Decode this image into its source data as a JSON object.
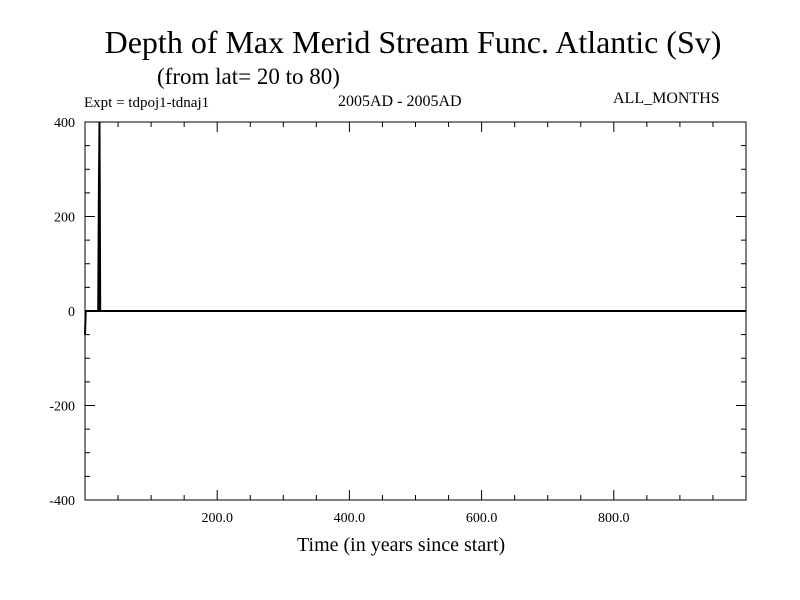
{
  "chart_data": {
    "type": "line",
    "title": "Depth of Max Merid Stream Func. Atlantic (Sv)",
    "subtitle": "(from lat= 20 to 80)",
    "expt": "Expt = tdpoj1-tdnaj1",
    "period": "2005AD - 2005AD",
    "months": "ALL_MONTHS",
    "xlabel": "Time (in years since start)",
    "ylabel": "",
    "xlim": [
      0,
      1000
    ],
    "ylim": [
      -400,
      400
    ],
    "xticks": [
      200,
      400,
      600,
      800
    ],
    "xtick_labels": [
      "200.0",
      "400.0",
      "600.0",
      "800.0"
    ],
    "yticks": [
      -400,
      -200,
      0,
      200,
      400
    ],
    "ytick_labels": [
      "-400",
      "-200",
      "0",
      "200",
      "400"
    ],
    "grid": false,
    "series": [
      {
        "values": [
          [
            0,
            -50
          ],
          [
            1,
            0
          ],
          [
            20,
            0
          ],
          [
            21,
            260
          ],
          [
            22,
            400
          ],
          [
            23,
            0
          ],
          [
            50,
            0
          ],
          [
            100,
            0
          ],
          [
            150,
            0
          ],
          [
            200,
            0
          ],
          [
            250,
            0
          ],
          [
            300,
            0
          ],
          [
            350,
            0
          ],
          [
            400,
            0
          ],
          [
            450,
            0
          ],
          [
            500,
            0
          ],
          [
            550,
            0
          ],
          [
            600,
            0
          ],
          [
            650,
            0
          ],
          [
            700,
            0
          ],
          [
            750,
            0
          ],
          [
            800,
            0
          ],
          [
            850,
            0
          ],
          [
            900,
            0
          ],
          [
            950,
            0
          ],
          [
            1000,
            0
          ]
        ]
      }
    ]
  }
}
